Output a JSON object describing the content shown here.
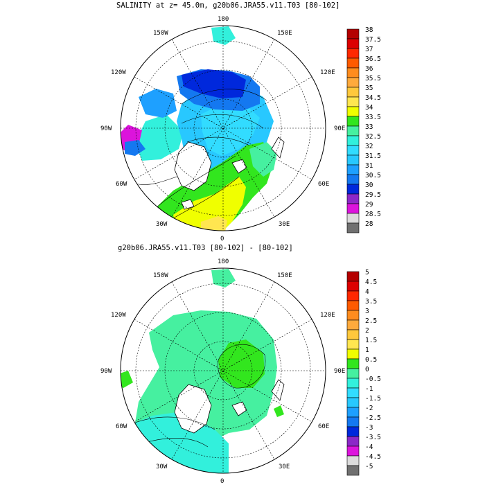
{
  "panels": [
    {
      "id": "top",
      "title": "SALINITY at z=  45.0m, g20b06.JRA55.v11.T03 [80-102]",
      "lon_labels": {
        "l180": "180",
        "l150W": "150W",
        "l150E": "150E",
        "l120W": "120W",
        "l120E": "120E",
        "l90W": "90W",
        "l90E": "90E",
        "l60W": "60W",
        "l60E": "60E",
        "l30W": "30W",
        "l30E": "30E",
        "l0": "0"
      },
      "colorbar": {
        "labels": [
          "38",
          "37.5",
          "37",
          "36.5",
          "36",
          "35.5",
          "35",
          "34.5",
          "34",
          "33.5",
          "33",
          "32.5",
          "32",
          "31.5",
          "31",
          "30.5",
          "30",
          "29.5",
          "29",
          "28.5",
          "28"
        ],
        "colors": [
          "#b40000",
          "#dc0000",
          "#ff2800",
          "#ff5a00",
          "#ff8c1e",
          "#ffaa3c",
          "#ffc83c",
          "#ffe650",
          "#f0ff00",
          "#32e61e",
          "#46f0a0",
          "#32f0dc",
          "#32dcff",
          "#28c8ff",
          "#1ea0ff",
          "#1478f0",
          "#0028dc",
          "#8c28c8",
          "#dc14dc",
          "#dcdcdc",
          "#707070"
        ]
      }
    },
    {
      "id": "bottom",
      "title": "g20b06.JRA55.v11.T03 [80-102] -  [80-102]",
      "lon_labels": {
        "l180": "180",
        "l150W": "150W",
        "l150E": "150E",
        "l120W": "120W",
        "l120E": "120E",
        "l90W": "90W",
        "l90E": "90E",
        "l60W": "60W",
        "l60E": "60E",
        "l30W": "30W",
        "l30E": "30E",
        "l0": "0"
      },
      "colorbar": {
        "labels": [
          "5",
          "4.5",
          "4",
          "3.5",
          "3",
          "2.5",
          "2",
          "1.5",
          "1",
          "0.5",
          "0",
          "-0.5",
          "-1",
          "-1.5",
          "-2",
          "-2.5",
          "-3",
          "-3.5",
          "-4",
          "-4.5",
          "-5"
        ],
        "colors": [
          "#b40000",
          "#dc0000",
          "#ff2800",
          "#ff5a00",
          "#ff8c1e",
          "#ffaa3c",
          "#ffc83c",
          "#ffe650",
          "#f0ff00",
          "#32e61e",
          "#46f0a0",
          "#32f0dc",
          "#32dcff",
          "#28c8ff",
          "#1ea0ff",
          "#1478f0",
          "#0028dc",
          "#8c28c8",
          "#dc14dc",
          "#dcdcdc",
          "#707070"
        ]
      }
    }
  ]
}
